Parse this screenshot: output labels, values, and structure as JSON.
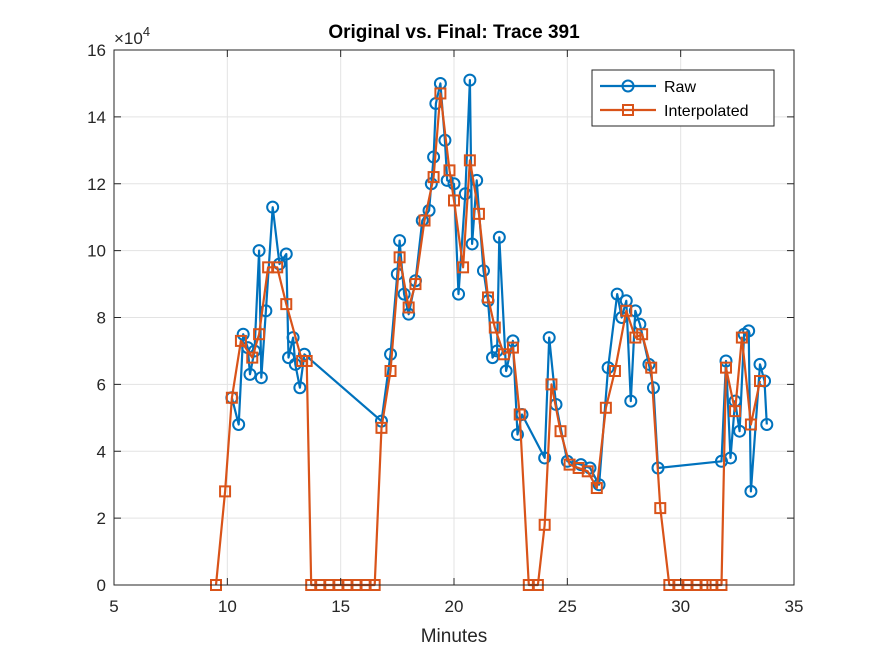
{
  "chart_data": {
    "type": "line",
    "title": "Original vs. Final: Trace 391",
    "xlabel": "Minutes",
    "ylabel": "",
    "xlim": [
      5,
      35
    ],
    "ylim": [
      0,
      160000
    ],
    "x_ticks": [
      5,
      10,
      15,
      20,
      25,
      30,
      35
    ],
    "x_tick_labels": [
      "5",
      "10",
      "15",
      "20",
      "25",
      "30",
      "35"
    ],
    "y_ticks": [
      0,
      20000,
      40000,
      60000,
      80000,
      100000,
      120000,
      140000,
      160000
    ],
    "y_tick_labels": [
      "0",
      "2",
      "4",
      "6",
      "8",
      "10",
      "12",
      "14",
      "16"
    ],
    "y_exponent_base": "×10",
    "y_exponent_power": "4",
    "grid": true,
    "legend_position": "top-right",
    "series": [
      {
        "name": "Raw",
        "color": "#0072BD",
        "marker": "circle",
        "points": [
          [
            10.2,
            56000
          ],
          [
            10.5,
            48000
          ],
          [
            10.7,
            75000
          ],
          [
            10.9,
            71000
          ],
          [
            11.0,
            63000
          ],
          [
            11.2,
            70000
          ],
          [
            11.4,
            100000
          ],
          [
            11.5,
            62000
          ],
          [
            11.7,
            82000
          ],
          [
            12.0,
            113000
          ],
          [
            12.3,
            96000
          ],
          [
            12.6,
            99000
          ],
          [
            12.7,
            68000
          ],
          [
            12.9,
            74000
          ],
          [
            13.0,
            66000
          ],
          [
            13.2,
            59000
          ],
          [
            13.4,
            69000
          ],
          [
            16.8,
            49000
          ],
          [
            17.2,
            69000
          ],
          [
            17.5,
            93000
          ],
          [
            17.6,
            103000
          ],
          [
            17.8,
            87000
          ],
          [
            18.0,
            81000
          ],
          [
            18.3,
            91000
          ],
          [
            18.6,
            109000
          ],
          [
            18.9,
            112000
          ],
          [
            19.0,
            120000
          ],
          [
            19.1,
            128000
          ],
          [
            19.2,
            144000
          ],
          [
            19.4,
            150000
          ],
          [
            19.6,
            133000
          ],
          [
            19.7,
            121000
          ],
          [
            20.0,
            120000
          ],
          [
            20.2,
            87000
          ],
          [
            20.5,
            117000
          ],
          [
            20.7,
            151000
          ],
          [
            20.8,
            102000
          ],
          [
            21.0,
            121000
          ],
          [
            21.3,
            94000
          ],
          [
            21.5,
            85000
          ],
          [
            21.7,
            68000
          ],
          [
            21.9,
            70000
          ],
          [
            22.0,
            104000
          ],
          [
            22.3,
            64000
          ],
          [
            22.6,
            73000
          ],
          [
            22.8,
            45000
          ],
          [
            23.0,
            51000
          ],
          [
            24.0,
            38000
          ],
          [
            24.2,
            74000
          ],
          [
            24.5,
            54000
          ],
          [
            25.0,
            37000
          ],
          [
            25.6,
            36000
          ],
          [
            26.0,
            35000
          ],
          [
            26.4,
            30000
          ],
          [
            26.8,
            65000
          ],
          [
            27.2,
            87000
          ],
          [
            27.4,
            80000
          ],
          [
            27.6,
            85000
          ],
          [
            27.8,
            55000
          ],
          [
            28.0,
            82000
          ],
          [
            28.2,
            78000
          ],
          [
            28.6,
            66000
          ],
          [
            28.8,
            59000
          ],
          [
            29.0,
            35000
          ],
          [
            31.8,
            37000
          ],
          [
            32.0,
            67000
          ],
          [
            32.2,
            38000
          ],
          [
            32.4,
            55000
          ],
          [
            32.6,
            46000
          ],
          [
            32.8,
            75000
          ],
          [
            33.0,
            76000
          ],
          [
            33.1,
            28000
          ],
          [
            33.5,
            66000
          ],
          [
            33.7,
            61000
          ],
          [
            33.8,
            48000
          ]
        ]
      },
      {
        "name": "Interpolated",
        "color": "#D95319",
        "marker": "square",
        "points": [
          [
            9.5,
            0
          ],
          [
            9.9,
            28000
          ],
          [
            10.2,
            56000
          ],
          [
            10.6,
            73000
          ],
          [
            11.1,
            68000
          ],
          [
            11.4,
            75000
          ],
          [
            11.8,
            95000
          ],
          [
            12.2,
            95000
          ],
          [
            12.6,
            84000
          ],
          [
            13.3,
            67000
          ],
          [
            13.5,
            67000
          ],
          [
            13.7,
            0
          ],
          [
            14.1,
            0
          ],
          [
            14.5,
            0
          ],
          [
            14.9,
            0
          ],
          [
            15.3,
            0
          ],
          [
            15.7,
            0
          ],
          [
            16.1,
            0
          ],
          [
            16.5,
            0
          ],
          [
            16.8,
            47000
          ],
          [
            17.2,
            64000
          ],
          [
            17.6,
            98000
          ],
          [
            18.0,
            83000
          ],
          [
            18.3,
            90000
          ],
          [
            18.7,
            109000
          ],
          [
            19.1,
            122000
          ],
          [
            19.4,
            147000
          ],
          [
            19.8,
            124000
          ],
          [
            20.0,
            115000
          ],
          [
            20.4,
            95000
          ],
          [
            20.7,
            127000
          ],
          [
            21.1,
            111000
          ],
          [
            21.5,
            86000
          ],
          [
            21.8,
            77000
          ],
          [
            22.2,
            69000
          ],
          [
            22.6,
            71000
          ],
          [
            22.9,
            51000
          ],
          [
            23.3,
            0
          ],
          [
            23.7,
            0
          ],
          [
            24.0,
            18000
          ],
          [
            24.3,
            60000
          ],
          [
            24.7,
            46000
          ],
          [
            25.1,
            36000
          ],
          [
            25.5,
            35000
          ],
          [
            25.9,
            34000
          ],
          [
            26.3,
            29000
          ],
          [
            26.7,
            53000
          ],
          [
            27.1,
            64000
          ],
          [
            27.6,
            82000
          ],
          [
            28.0,
            74000
          ],
          [
            28.3,
            75000
          ],
          [
            28.7,
            65000
          ],
          [
            29.1,
            23000
          ],
          [
            29.5,
            0
          ],
          [
            29.9,
            0
          ],
          [
            30.3,
            0
          ],
          [
            30.7,
            0
          ],
          [
            31.1,
            0
          ],
          [
            31.4,
            0
          ],
          [
            31.8,
            0
          ],
          [
            32.0,
            65000
          ],
          [
            32.4,
            52000
          ],
          [
            32.7,
            74000
          ],
          [
            33.1,
            48000
          ],
          [
            33.5,
            61000
          ]
        ]
      }
    ]
  }
}
